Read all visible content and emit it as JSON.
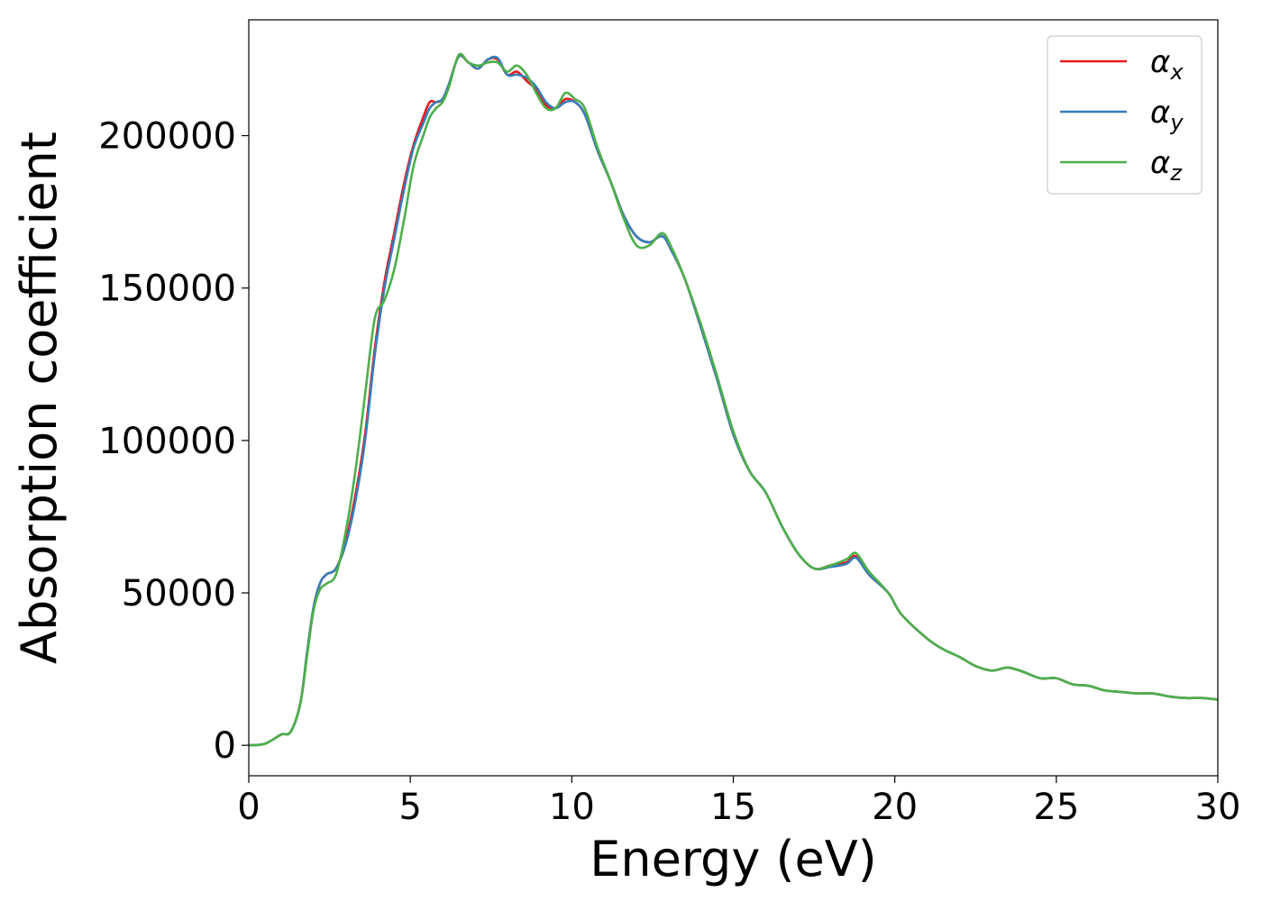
{
  "chart_data": {
    "type": "line",
    "xlabel": "Energy (eV)",
    "ylabel": "Absorption coefficient",
    "xlim": [
      0,
      30
    ],
    "ylim": [
      -10000,
      238000
    ],
    "xticks": [
      0,
      5,
      10,
      15,
      20,
      25,
      30
    ],
    "yticks": [
      0,
      50000,
      100000,
      150000,
      200000
    ],
    "grid": false,
    "legend_position": "top-right",
    "series": [
      {
        "name": "α_x",
        "label_main": "α",
        "label_sub": "x",
        "color": "#e41a1c",
        "points": [
          [
            0,
            0
          ],
          [
            0.5,
            500
          ],
          [
            1,
            3500
          ],
          [
            1.3,
            4500
          ],
          [
            1.6,
            14000
          ],
          [
            1.8,
            30000
          ],
          [
            2.0,
            45000
          ],
          [
            2.2,
            53000
          ],
          [
            2.4,
            56000
          ],
          [
            2.7,
            58000
          ],
          [
            3.0,
            67000
          ],
          [
            3.3,
            82000
          ],
          [
            3.6,
            102000
          ],
          [
            3.9,
            130000
          ],
          [
            4.2,
            152000
          ],
          [
            4.5,
            168000
          ],
          [
            4.8,
            184000
          ],
          [
            5.1,
            197000
          ],
          [
            5.4,
            206000
          ],
          [
            5.6,
            211000
          ],
          [
            5.8,
            211000
          ],
          [
            6.0,
            212000
          ],
          [
            6.2,
            217000
          ],
          [
            6.5,
            226000
          ],
          [
            6.8,
            224000
          ],
          [
            7.1,
            222000
          ],
          [
            7.4,
            225000
          ],
          [
            7.7,
            225000
          ],
          [
            8.0,
            220000
          ],
          [
            8.3,
            221000
          ],
          [
            8.6,
            218000
          ],
          [
            8.9,
            215000
          ],
          [
            9.2,
            210000
          ],
          [
            9.5,
            209000
          ],
          [
            9.8,
            212000
          ],
          [
            10.1,
            211000
          ],
          [
            10.4,
            207000
          ],
          [
            10.8,
            195000
          ],
          [
            11.2,
            185000
          ],
          [
            11.6,
            174000
          ],
          [
            12.0,
            167000
          ],
          [
            12.4,
            165000
          ],
          [
            12.8,
            167000
          ],
          [
            13.1,
            162000
          ],
          [
            13.5,
            153000
          ],
          [
            14.0,
            137000
          ],
          [
            14.5,
            120000
          ],
          [
            15.0,
            102000
          ],
          [
            15.5,
            90000
          ],
          [
            16.0,
            83000
          ],
          [
            16.5,
            72000
          ],
          [
            17.0,
            63000
          ],
          [
            17.5,
            58000
          ],
          [
            18.0,
            59000
          ],
          [
            18.5,
            60000
          ],
          [
            18.8,
            62000
          ],
          [
            19.2,
            56000
          ],
          [
            19.8,
            50000
          ],
          [
            20.2,
            43000
          ],
          [
            21.0,
            35000
          ],
          [
            21.5,
            31500
          ],
          [
            22.0,
            29000
          ],
          [
            22.5,
            26000
          ],
          [
            23.0,
            24500
          ],
          [
            23.5,
            25500
          ],
          [
            24.0,
            24000
          ],
          [
            24.5,
            22000
          ],
          [
            25.0,
            22000
          ],
          [
            25.5,
            20000
          ],
          [
            26.0,
            19500
          ],
          [
            26.5,
            18000
          ],
          [
            27.0,
            17500
          ],
          [
            27.5,
            17000
          ],
          [
            28.0,
            17000
          ],
          [
            28.5,
            16000
          ],
          [
            29.0,
            15500
          ],
          [
            29.5,
            15500
          ],
          [
            30.0,
            15000
          ]
        ]
      },
      {
        "name": "α_y",
        "label_main": "α",
        "label_sub": "y",
        "color": "#377eb8",
        "points": [
          [
            0,
            0
          ],
          [
            0.5,
            500
          ],
          [
            1,
            3500
          ],
          [
            1.3,
            4500
          ],
          [
            1.6,
            14000
          ],
          [
            1.8,
            30000
          ],
          [
            2.0,
            45000
          ],
          [
            2.2,
            53000
          ],
          [
            2.4,
            56000
          ],
          [
            2.7,
            58000
          ],
          [
            3.0,
            66000
          ],
          [
            3.3,
            80000
          ],
          [
            3.6,
            100000
          ],
          [
            3.9,
            128000
          ],
          [
            4.2,
            150000
          ],
          [
            4.5,
            166000
          ],
          [
            4.8,
            182000
          ],
          [
            5.1,
            196000
          ],
          [
            5.4,
            204000
          ],
          [
            5.6,
            209000
          ],
          [
            5.8,
            211000
          ],
          [
            6.0,
            212000
          ],
          [
            6.2,
            217000
          ],
          [
            6.5,
            226000
          ],
          [
            6.8,
            224000
          ],
          [
            7.1,
            222000
          ],
          [
            7.4,
            225000
          ],
          [
            7.7,
            225500
          ],
          [
            8.0,
            220000
          ],
          [
            8.3,
            220000
          ],
          [
            8.6,
            219000
          ],
          [
            8.9,
            216000
          ],
          [
            9.2,
            211000
          ],
          [
            9.5,
            209000
          ],
          [
            9.8,
            211000
          ],
          [
            10.1,
            211000
          ],
          [
            10.4,
            207000
          ],
          [
            10.8,
            195000
          ],
          [
            11.2,
            185000
          ],
          [
            11.6,
            174000
          ],
          [
            12.0,
            167000
          ],
          [
            12.4,
            165000
          ],
          [
            12.8,
            167000
          ],
          [
            13.1,
            162000
          ],
          [
            13.5,
            153000
          ],
          [
            14.0,
            137000
          ],
          [
            14.5,
            120000
          ],
          [
            15.0,
            102000
          ],
          [
            15.5,
            90000
          ],
          [
            16.0,
            83000
          ],
          [
            16.5,
            72000
          ],
          [
            17.0,
            63000
          ],
          [
            17.5,
            58000
          ],
          [
            18.0,
            58500
          ],
          [
            18.5,
            59500
          ],
          [
            18.8,
            61500
          ],
          [
            19.2,
            56000
          ],
          [
            19.8,
            50000
          ],
          [
            20.2,
            43000
          ],
          [
            21.0,
            35000
          ],
          [
            21.5,
            31500
          ],
          [
            22.0,
            29000
          ],
          [
            22.5,
            26000
          ],
          [
            23.0,
            24500
          ],
          [
            23.5,
            25500
          ],
          [
            24.0,
            24000
          ],
          [
            24.5,
            22000
          ],
          [
            25.0,
            22000
          ],
          [
            25.5,
            20000
          ],
          [
            26.0,
            19500
          ],
          [
            26.5,
            18000
          ],
          [
            27.0,
            17500
          ],
          [
            27.5,
            17000
          ],
          [
            28.0,
            17000
          ],
          [
            28.5,
            16000
          ],
          [
            29.0,
            15500
          ],
          [
            29.5,
            15500
          ],
          [
            30.0,
            15000
          ]
        ]
      },
      {
        "name": "α_z",
        "label_main": "α",
        "label_sub": "z",
        "color": "#4daf4a",
        "points": [
          [
            0,
            0
          ],
          [
            0.5,
            500
          ],
          [
            1,
            3500
          ],
          [
            1.3,
            4500
          ],
          [
            1.6,
            14000
          ],
          [
            1.8,
            29000
          ],
          [
            2.0,
            44000
          ],
          [
            2.2,
            51000
          ],
          [
            2.4,
            53000
          ],
          [
            2.7,
            56000
          ],
          [
            3.0,
            70000
          ],
          [
            3.3,
            90000
          ],
          [
            3.6,
            115000
          ],
          [
            3.9,
            140000
          ],
          [
            4.2,
            146000
          ],
          [
            4.5,
            156000
          ],
          [
            4.8,
            172000
          ],
          [
            5.1,
            190000
          ],
          [
            5.4,
            200000
          ],
          [
            5.6,
            206000
          ],
          [
            5.8,
            209000
          ],
          [
            6.0,
            211000
          ],
          [
            6.2,
            216000
          ],
          [
            6.5,
            226500
          ],
          [
            6.8,
            224000
          ],
          [
            7.1,
            223000
          ],
          [
            7.4,
            224000
          ],
          [
            7.7,
            224000
          ],
          [
            8.0,
            221000
          ],
          [
            8.3,
            223000
          ],
          [
            8.6,
            220000
          ],
          [
            8.9,
            214000
          ],
          [
            9.2,
            209000
          ],
          [
            9.5,
            209000
          ],
          [
            9.8,
            214000
          ],
          [
            10.1,
            212000
          ],
          [
            10.4,
            209000
          ],
          [
            10.8,
            196000
          ],
          [
            11.2,
            185000
          ],
          [
            11.6,
            173000
          ],
          [
            12.0,
            164000
          ],
          [
            12.4,
            164000
          ],
          [
            12.8,
            168000
          ],
          [
            13.1,
            163000
          ],
          [
            13.5,
            153000
          ],
          [
            14.0,
            138000
          ],
          [
            14.5,
            121000
          ],
          [
            15.0,
            103000
          ],
          [
            15.5,
            90000
          ],
          [
            16.0,
            83000
          ],
          [
            16.5,
            72000
          ],
          [
            17.0,
            63000
          ],
          [
            17.5,
            58000
          ],
          [
            18.0,
            59000
          ],
          [
            18.5,
            61000
          ],
          [
            18.8,
            63000
          ],
          [
            19.2,
            57000
          ],
          [
            19.8,
            50000
          ],
          [
            20.2,
            43000
          ],
          [
            21.0,
            35000
          ],
          [
            21.5,
            31500
          ],
          [
            22.0,
            29000
          ],
          [
            22.5,
            26000
          ],
          [
            23.0,
            24500
          ],
          [
            23.5,
            25500
          ],
          [
            24.0,
            24000
          ],
          [
            24.5,
            22000
          ],
          [
            25.0,
            22000
          ],
          [
            25.5,
            20000
          ],
          [
            26.0,
            19500
          ],
          [
            26.5,
            18000
          ],
          [
            27.0,
            17500
          ],
          [
            27.5,
            17000
          ],
          [
            28.0,
            17000
          ],
          [
            28.5,
            16000
          ],
          [
            29.0,
            15500
          ],
          [
            29.5,
            15500
          ],
          [
            30.0,
            15000
          ]
        ]
      }
    ]
  }
}
